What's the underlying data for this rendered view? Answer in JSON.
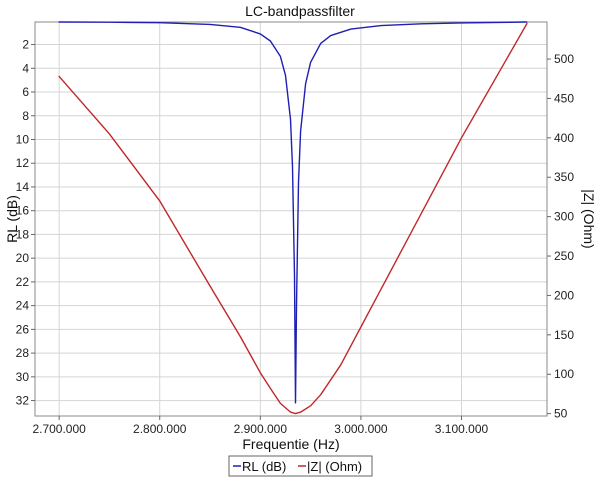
{
  "chart_data": {
    "type": "line",
    "title": "LC-bandpassfilter",
    "xlabel": "Frequentie (Hz)",
    "ylabel_left": "RL (dB)",
    "ylabel_right": "|Z| (Ohm)",
    "x_axis": {
      "range": [
        2676000,
        3185000
      ],
      "ticks": [
        2700000,
        2800000,
        2900000,
        3000000,
        3100000
      ],
      "tick_labels": [
        "2.700.000",
        "2.800.000",
        "2.900.000",
        "3.000.000",
        "3.100.000"
      ]
    },
    "y_left": {
      "range": [
        0.1,
        33.3
      ],
      "inverted": true,
      "ticks": [
        2,
        4,
        6,
        8,
        10,
        12,
        14,
        16,
        18,
        20,
        22,
        24,
        26,
        28,
        30,
        32
      ],
      "tick_labels": [
        "2",
        "4",
        "6",
        "8",
        "10",
        "12",
        "14",
        "16",
        "18",
        "20",
        "22",
        "24",
        "26",
        "28",
        "30",
        "32"
      ]
    },
    "y_right": {
      "range": [
        47,
        547
      ],
      "ticks": [
        50,
        100,
        150,
        200,
        250,
        300,
        350,
        400,
        450,
        500
      ],
      "tick_labels": [
        "50",
        "100",
        "150",
        "200",
        "250",
        "300",
        "350",
        "400",
        "450",
        "500"
      ]
    },
    "grid": true,
    "legend": "bottom-center",
    "series": [
      {
        "name": "RL (dB)",
        "axis": "left",
        "color": "#1f1fb4",
        "x": [
          2700000,
          2750000,
          2800000,
          2850000,
          2880000,
          2900000,
          2910000,
          2920000,
          2925000,
          2930000,
          2932000,
          2934000,
          2935000,
          2936000,
          2938000,
          2940000,
          2945000,
          2950000,
          2960000,
          2970000,
          2990000,
          3020000,
          3060000,
          3100000,
          3165000
        ],
        "y": [
          0.1,
          0.12,
          0.16,
          0.3,
          0.55,
          1.1,
          1.7,
          3.0,
          4.6,
          8.3,
          12.3,
          21.5,
          32.2,
          24.0,
          13.6,
          9.3,
          5.3,
          3.5,
          1.9,
          1.25,
          0.7,
          0.4,
          0.25,
          0.18,
          0.1
        ]
      },
      {
        "name": "|Z| (Ohm)",
        "axis": "right",
        "color": "#c0282a",
        "x": [
          2700000,
          2750000,
          2800000,
          2850000,
          2880000,
          2900000,
          2910000,
          2920000,
          2930000,
          2935000,
          2940000,
          2950000,
          2960000,
          2980000,
          3000000,
          3050000,
          3100000,
          3165000
        ],
        "y": [
          478,
          405,
          320,
          212,
          148,
          102,
          82,
          63,
          52,
          50,
          52,
          60,
          74,
          112,
          160,
          280,
          400,
          545
        ]
      }
    ]
  }
}
